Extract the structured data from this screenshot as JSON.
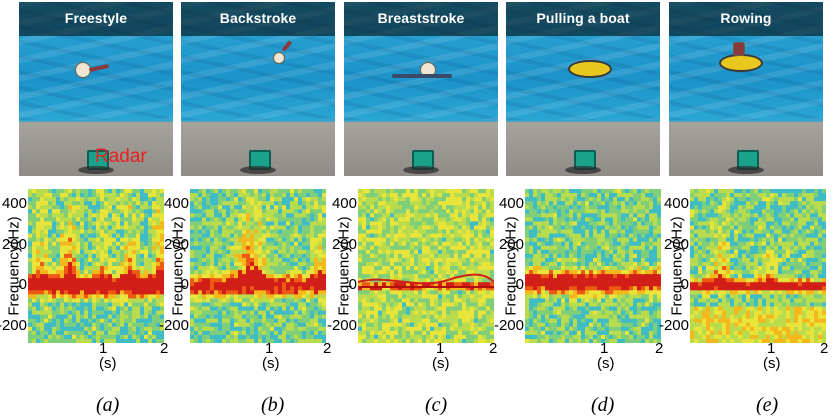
{
  "panels": [
    {
      "id": "a",
      "title": "Freestyle",
      "caption": "(a)",
      "radar_label": "Radar"
    },
    {
      "id": "b",
      "title": "Backstroke",
      "caption": "(b)"
    },
    {
      "id": "c",
      "title": "Breaststroke",
      "caption": "(c)"
    },
    {
      "id": "d",
      "title": "Pulling a boat",
      "caption": "(d)"
    },
    {
      "id": "e",
      "title": "Rowing",
      "caption": "(e)"
    }
  ],
  "axes": {
    "ylabel": "Frequency(Hz)",
    "xlabel": "(s)",
    "yticks": [
      "400",
      "200",
      "0",
      "-200"
    ],
    "xticks": [
      "1",
      "2"
    ]
  },
  "chart_data": [
    {
      "type": "heatmap",
      "panel": "a",
      "ylabel": "Frequency(Hz)",
      "xlabel": "(s)",
      "ylim": [
        -250,
        480
      ],
      "xlim": [
        0,
        2
      ],
      "yticks": [
        400,
        200,
        0,
        -200
      ],
      "xticks": [
        1,
        2
      ]
    },
    {
      "type": "heatmap",
      "panel": "b",
      "ylabel": "Frequency(Hz)",
      "xlabel": "(s)",
      "ylim": [
        -250,
        480
      ],
      "xlim": [
        0,
        2
      ],
      "yticks": [
        400,
        200,
        0,
        -200
      ],
      "xticks": [
        1,
        2
      ]
    },
    {
      "type": "heatmap",
      "panel": "c",
      "ylabel": "Frequency(Hz)",
      "xlabel": "(s)",
      "ylim": [
        -250,
        480
      ],
      "xlim": [
        0,
        2
      ],
      "yticks": [
        400,
        200,
        0,
        -200
      ],
      "xticks": [
        1,
        2
      ]
    },
    {
      "type": "heatmap",
      "panel": "d",
      "ylabel": "Frequency(Hz)",
      "xlabel": "(s)",
      "ylim": [
        -250,
        480
      ],
      "xlim": [
        0,
        2
      ],
      "yticks": [
        400,
        200,
        0,
        -200
      ],
      "xticks": [
        1,
        2
      ]
    },
    {
      "type": "heatmap",
      "panel": "e",
      "ylabel": "Frequency(Hz)",
      "xlabel": "(s)",
      "ylim": [
        -250,
        480
      ],
      "xlim": [
        0,
        2
      ],
      "yticks": [
        400,
        200,
        0,
        -200
      ],
      "xticks": [
        1,
        2
      ]
    }
  ],
  "colors": {
    "low": "#2fb6c8",
    "mid": "#e8e23a",
    "high": "#d42a1c"
  }
}
